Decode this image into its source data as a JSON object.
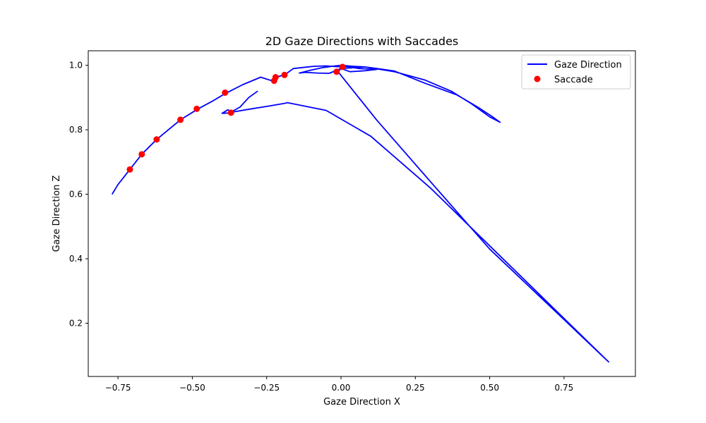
{
  "chart_data": {
    "type": "line",
    "title": "2D Gaze Directions with Saccades",
    "xlabel": "Gaze Direction X",
    "ylabel": "Gaze Direction Z",
    "xlim": [
      -0.85,
      0.99
    ],
    "ylim": [
      0.035,
      1.045
    ],
    "xticks": [
      -0.75,
      -0.5,
      -0.25,
      0.0,
      0.25,
      0.5,
      0.75
    ],
    "xtick_labels": [
      "−0.75",
      "−0.50",
      "−0.25",
      "0.00",
      "0.25",
      "0.50",
      "0.75"
    ],
    "yticks": [
      0.2,
      0.4,
      0.6,
      0.8,
      1.0
    ],
    "ytick_labels": [
      "0.2",
      "0.4",
      "0.6",
      "0.8",
      "1.0"
    ],
    "grid": false,
    "legend_position": "top-right",
    "series": [
      {
        "name": "Gaze Direction",
        "kind": "line",
        "color": "#0000ff",
        "x": [
          -0.77,
          -0.75,
          -0.71,
          -0.67,
          -0.62,
          -0.54,
          -0.48,
          -0.43,
          -0.39,
          -0.33,
          -0.27,
          -0.225,
          -0.22,
          -0.19,
          -0.16,
          -0.13,
          -0.09,
          -0.05,
          -0.02,
          0.0,
          0.02,
          0.06,
          0.12,
          0.08,
          0.03,
          0.0,
          -0.04,
          -0.08,
          -0.12,
          -0.14,
          -0.1,
          -0.06,
          -0.02,
          0.0,
          0.04,
          0.08,
          0.12,
          0.18,
          0.28,
          0.39,
          0.46,
          0.51,
          0.535,
          0.5,
          0.44,
          0.37,
          0.28,
          0.18,
          0.08,
          0.0,
          -0.01,
          0.12,
          0.3,
          0.5,
          0.7,
          0.9,
          0.7,
          0.5,
          0.3,
          0.1,
          -0.05,
          -0.18,
          -0.19,
          -0.24,
          -0.32,
          -0.37,
          -0.38,
          -0.4,
          -0.38,
          -0.37,
          -0.34,
          -0.31,
          -0.28
        ],
        "y": [
          0.6,
          0.63,
          0.677,
          0.724,
          0.77,
          0.831,
          0.865,
          0.89,
          0.912,
          0.94,
          0.963,
          0.95,
          0.963,
          0.97,
          0.99,
          0.993,
          0.997,
          0.998,
          0.996,
          0.995,
          0.996,
          0.99,
          0.987,
          0.983,
          0.98,
          0.99,
          0.975,
          0.976,
          0.978,
          0.976,
          0.985,
          0.993,
          0.998,
          1.0,
          0.997,
          0.995,
          0.99,
          0.982,
          0.945,
          0.908,
          0.87,
          0.84,
          0.823,
          0.84,
          0.88,
          0.92,
          0.955,
          0.98,
          0.995,
          0.99,
          0.98,
          0.83,
          0.64,
          0.43,
          0.255,
          0.08,
          0.26,
          0.44,
          0.62,
          0.78,
          0.86,
          0.884,
          0.882,
          0.874,
          0.862,
          0.854,
          0.852,
          0.851,
          0.862,
          0.855,
          0.87,
          0.9,
          0.92
        ]
      },
      {
        "name": "Saccade",
        "kind": "scatter",
        "color": "#ff0000",
        "x": [
          -0.71,
          -0.67,
          -0.62,
          -0.54,
          -0.485,
          -0.39,
          -0.225,
          -0.22,
          -0.19,
          -0.015,
          0.005,
          -0.37
        ],
        "y": [
          0.677,
          0.724,
          0.77,
          0.831,
          0.865,
          0.915,
          0.952,
          0.963,
          0.97,
          0.98,
          0.995,
          0.853
        ]
      }
    ]
  }
}
